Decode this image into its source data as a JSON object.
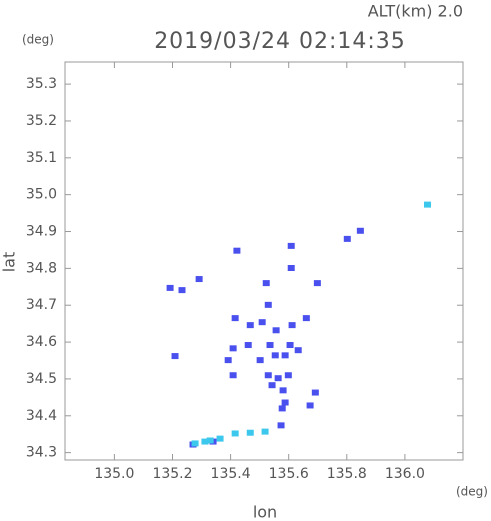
{
  "chart_data": {
    "type": "scatter",
    "title": "2019/03/24 02:14:35",
    "subtitle": "ALT(km) 2.0",
    "x_label": "lon",
    "y_label": "lat",
    "x_unit": "(deg)",
    "y_unit": "(deg)",
    "xlim": [
      134.83,
      136.2
    ],
    "ylim": [
      34.28,
      35.36
    ],
    "xticks": [
      {
        "value": 135,
        "label": "135.0"
      },
      135.2,
      135.4,
      135.6,
      135.8,
      {
        "value": 136,
        "label": "136.0"
      }
    ],
    "yticks": [
      34.3,
      34.4,
      34.5,
      34.6,
      34.7,
      34.8,
      34.9,
      {
        "value": 35,
        "label": "35.0"
      },
      35.1,
      35.2,
      35.3
    ],
    "series": [
      {
        "color": "#4a50ee",
        "x": [
          135.845,
          135.8,
          135.42,
          135.607,
          135.607,
          135.29,
          135.231,
          135.19,
          135.521,
          135.697,
          135.414,
          135.466,
          135.507,
          135.555,
          135.659,
          135.528,
          135.61,
          135.459,
          135.407,
          135.534,
          135.603,
          135.5,
          135.552,
          135.586,
          135.631,
          135.528,
          135.562,
          135.541,
          135.597,
          135.579,
          135.407,
          135.39,
          135.207,
          135.69,
          135.672,
          135.586,
          135.576,
          135.572,
          135.269,
          135.338
        ],
        "y": [
          34.902,
          34.88,
          34.848,
          34.861,
          34.801,
          34.771,
          34.741,
          34.747,
          34.76,
          34.76,
          34.665,
          34.646,
          34.654,
          34.632,
          34.665,
          34.701,
          34.646,
          34.592,
          34.583,
          34.592,
          34.592,
          34.551,
          34.564,
          34.564,
          34.578,
          34.51,
          34.502,
          34.483,
          34.51,
          34.469,
          34.51,
          34.551,
          34.562,
          34.463,
          34.428,
          34.436,
          34.42,
          34.374,
          34.322,
          34.33
        ]
      },
      {
        "color": "#3cc8ec",
        "x": [
          136.076,
          135.276,
          135.31,
          135.328,
          135.362,
          135.414,
          135.466,
          135.517
        ],
        "y": [
          34.973,
          34.325,
          34.33,
          34.333,
          34.338,
          34.352,
          34.354,
          34.357
        ]
      }
    ]
  }
}
